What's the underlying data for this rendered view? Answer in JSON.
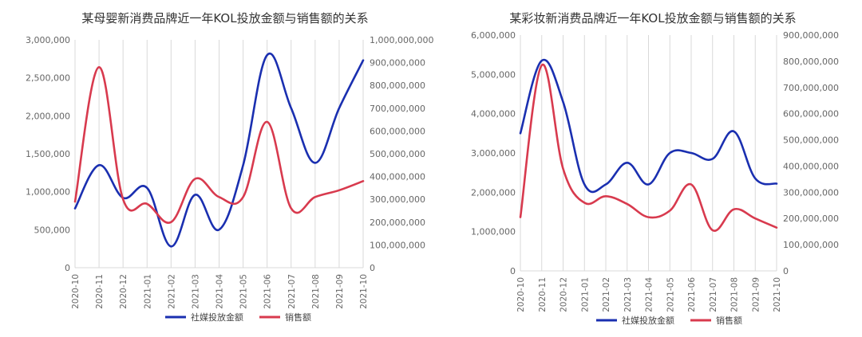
{
  "chart_data": [
    {
      "type": "line",
      "title": "某母婴新消费品牌近一年KOL投放金额与销售额的关系",
      "categories": [
        "2020-10",
        "2020-11",
        "2020-12",
        "2021-01",
        "2021-02",
        "2021-03",
        "2021-04",
        "2021-05",
        "2021-06",
        "2021-07",
        "2021-08",
        "2021-09",
        "2021-10"
      ],
      "y_left": {
        "min": 0,
        "max": 3000000,
        "step": 500000,
        "ticks": [
          "0",
          "500,000",
          "1,000,000",
          "1,500,000",
          "2,000,000",
          "2,500,000",
          "3,000,000"
        ]
      },
      "y_right": {
        "min": 0,
        "max": 1000000000,
        "step": 100000000,
        "ticks": [
          "0",
          "100,000,000",
          "200,000,000",
          "300,000,000",
          "400,000,000",
          "500,000,000",
          "600,000,000",
          "700,000,000",
          "800,000,000",
          "900,000,000",
          "1,000,000,000"
        ]
      },
      "grid": "vertical",
      "legend_position": "bottom",
      "series": [
        {
          "name": "社媒投放金额",
          "axis": "left",
          "color": "#1a2fb0",
          "values": [
            780000,
            1350000,
            920000,
            1050000,
            280000,
            960000,
            500000,
            1350000,
            2800000,
            2100000,
            1380000,
            2100000,
            2730000
          ]
        },
        {
          "name": "销售额",
          "axis": "right",
          "color": "#d83a4e",
          "values": [
            290000000,
            880000000,
            300000000,
            280000000,
            200000000,
            390000000,
            310000000,
            310000000,
            640000000,
            260000000,
            310000000,
            340000000,
            380000000
          ]
        }
      ]
    },
    {
      "type": "line",
      "title": "某彩妆新消费品牌近一年KOL投放金额与销售额的关系",
      "categories": [
        "2020-10",
        "2020-11",
        "2020-12",
        "2021-01",
        "2021-02",
        "2021-03",
        "2021-04",
        "2021-05",
        "2021-06",
        "2021-07",
        "2021-08",
        "2021-09",
        "2021-10"
      ],
      "y_left": {
        "min": 0,
        "max": 6000000,
        "step": 1000000,
        "ticks": [
          "0",
          "1,000,000",
          "2,000,000",
          "3,000,000",
          "4,000,000",
          "5,000,000",
          "6,000,000"
        ]
      },
      "y_right": {
        "min": 0,
        "max": 900000000,
        "step": 100000000,
        "ticks": [
          "0",
          "100,000,000",
          "200,000,000",
          "300,000,000",
          "400,000,000",
          "500,000,000",
          "600,000,000",
          "700,000,000",
          "800,000,000",
          "900,000,000"
        ]
      },
      "grid": "vertical",
      "legend_position": "bottom",
      "series": [
        {
          "name": "社媒投放金额",
          "axis": "left",
          "color": "#1a2fb0",
          "values": [
            3500000,
            5350000,
            4300000,
            2200000,
            2200000,
            2750000,
            2200000,
            3000000,
            3000000,
            2850000,
            3550000,
            2350000,
            2220000
          ]
        },
        {
          "name": "销售额",
          "axis": "right",
          "color": "#d83a4e",
          "values": [
            205000000,
            785000000,
            390000000,
            260000000,
            285000000,
            255000000,
            205000000,
            230000000,
            330000000,
            155000000,
            235000000,
            200000000,
            165000000
          ]
        }
      ]
    }
  ]
}
